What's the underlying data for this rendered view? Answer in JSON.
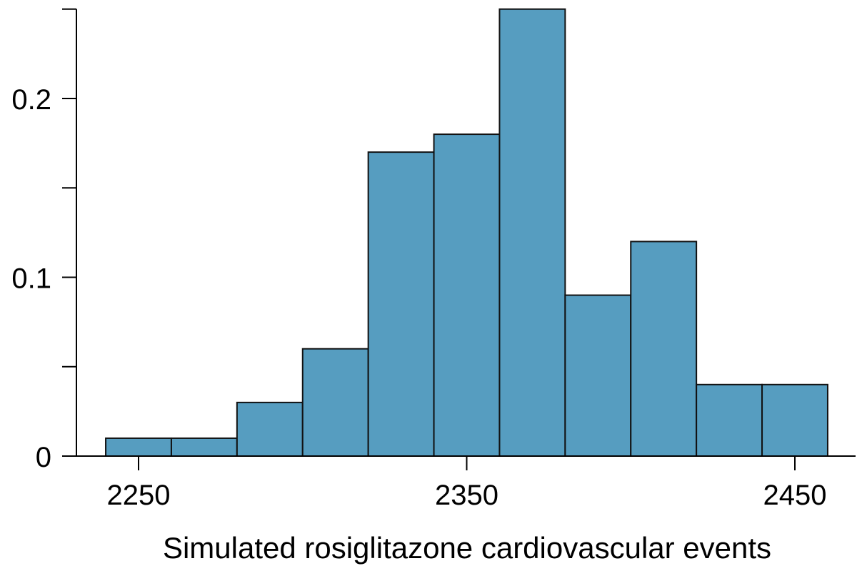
{
  "chart_data": {
    "type": "bar",
    "histogram": true,
    "xlabel": "Simulated rosiglitazone cardiovascular events",
    "ylabel": "",
    "bin_width": 20,
    "bins": [
      {
        "start": 2240,
        "end": 2260,
        "value": 0.01
      },
      {
        "start": 2260,
        "end": 2280,
        "value": 0.01
      },
      {
        "start": 2280,
        "end": 2300,
        "value": 0.03
      },
      {
        "start": 2300,
        "end": 2320,
        "value": 0.06
      },
      {
        "start": 2320,
        "end": 2340,
        "value": 0.17
      },
      {
        "start": 2340,
        "end": 2360,
        "value": 0.18
      },
      {
        "start": 2360,
        "end": 2380,
        "value": 0.25
      },
      {
        "start": 2380,
        "end": 2400,
        "value": 0.09
      },
      {
        "start": 2400,
        "end": 2420,
        "value": 0.12
      },
      {
        "start": 2420,
        "end": 2440,
        "value": 0.04
      },
      {
        "start": 2440,
        "end": 2460,
        "value": 0.04
      }
    ],
    "xlim": [
      2230,
      2465
    ],
    "ylim": [
      0,
      0.25
    ],
    "x_ticks": [
      {
        "value": 2250,
        "label": "2250"
      },
      {
        "value": 2350,
        "label": "2350"
      },
      {
        "value": 2450,
        "label": "2450"
      }
    ],
    "y_ticks": [
      {
        "value": 0,
        "label": "0"
      },
      {
        "value": 0.05,
        "label": ""
      },
      {
        "value": 0.1,
        "label": "0.1"
      },
      {
        "value": 0.15,
        "label": ""
      },
      {
        "value": 0.2,
        "label": "0.2"
      },
      {
        "value": 0.25,
        "label": ""
      }
    ],
    "bar_color": "#569dc0",
    "bar_edge_color": "#111111",
    "grid": false,
    "legend": "none"
  }
}
